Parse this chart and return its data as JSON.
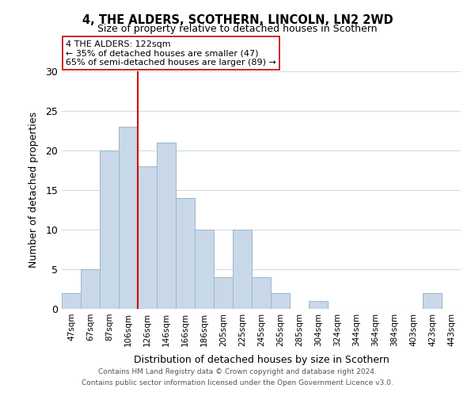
{
  "title": "4, THE ALDERS, SCOTHERN, LINCOLN, LN2 2WD",
  "subtitle": "Size of property relative to detached houses in Scothern",
  "xlabel": "Distribution of detached houses by size in Scothern",
  "ylabel": "Number of detached properties",
  "bar_labels": [
    "47sqm",
    "67sqm",
    "87sqm",
    "106sqm",
    "126sqm",
    "146sqm",
    "166sqm",
    "186sqm",
    "205sqm",
    "225sqm",
    "245sqm",
    "265sqm",
    "285sqm",
    "304sqm",
    "324sqm",
    "344sqm",
    "364sqm",
    "384sqm",
    "403sqm",
    "423sqm",
    "443sqm"
  ],
  "bar_values": [
    2,
    5,
    20,
    23,
    18,
    21,
    14,
    10,
    4,
    10,
    4,
    2,
    0,
    1,
    0,
    0,
    0,
    0,
    0,
    2,
    0
  ],
  "bar_color": "#c8d8e8",
  "bar_edge_color": "#9ab8cc",
  "vline_color": "#cc0000",
  "ylim": [
    0,
    30
  ],
  "yticks": [
    0,
    5,
    10,
    15,
    20,
    25,
    30
  ],
  "annotation_title": "4 THE ALDERS: 122sqm",
  "annotation_line1": "← 35% of detached houses are smaller (47)",
  "annotation_line2": "65% of semi-detached houses are larger (89) →",
  "annotation_box_color": "#ffffff",
  "annotation_box_edge": "#cc0000",
  "footer_line1": "Contains HM Land Registry data © Crown copyright and database right 2024.",
  "footer_line2": "Contains public sector information licensed under the Open Government Licence v3.0.",
  "background_color": "#ffffff",
  "grid_color": "#d0dce8"
}
